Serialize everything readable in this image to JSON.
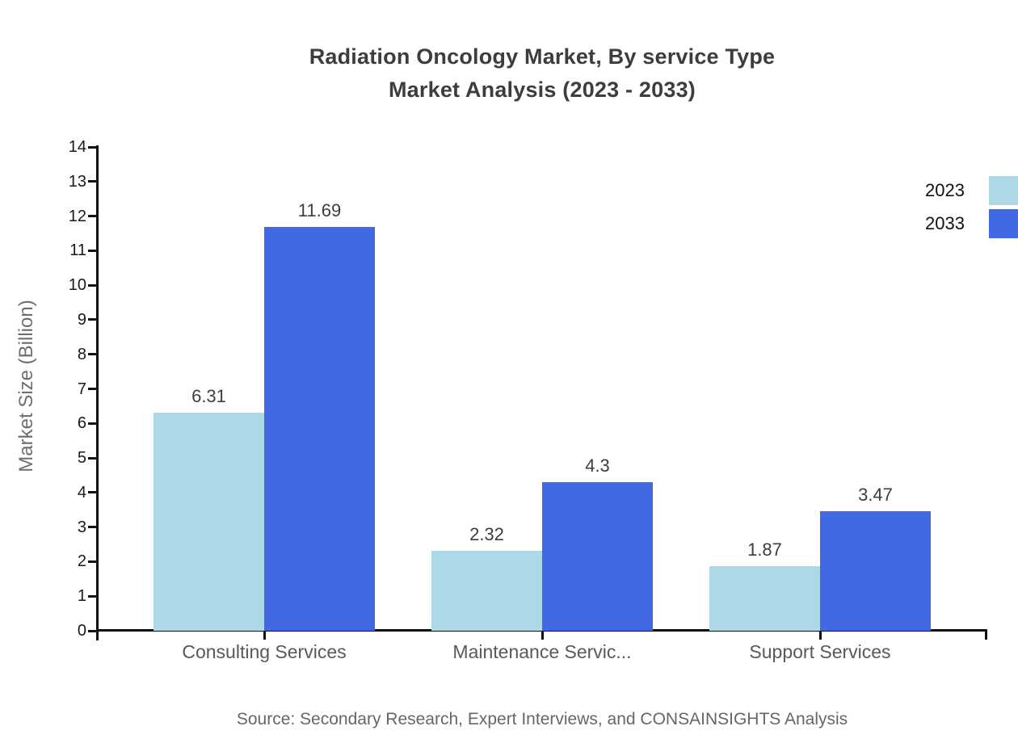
{
  "chart_data": {
    "type": "bar",
    "title": "Radiation Oncology Market, By service Type Market Analysis (2023 - 2033)",
    "title_lines": [
      "Radiation Oncology Market, By service Type",
      "Market Analysis (2023 - 2033)"
    ],
    "ylabel": "Market Size (Billion)",
    "xlabel": "",
    "categories": [
      "Consulting Services",
      "Maintenance Servic...",
      "Support Services"
    ],
    "series": [
      {
        "name": "2023",
        "color": "#ADD8E6",
        "values": [
          6.31,
          2.32,
          1.87
        ]
      },
      {
        "name": "2033",
        "color": "#4169E1",
        "values": [
          11.69,
          4.3,
          3.47
        ]
      }
    ],
    "value_labels": [
      [
        "6.31",
        "2.32",
        "1.87"
      ],
      [
        "11.69",
        "4.3",
        "3.47"
      ]
    ],
    "ylim": [
      0,
      14
    ],
    "ytick_step": 1,
    "grid": false,
    "legend_position": "top-right",
    "source": "Source: Secondary Research, Expert Interviews, and CONSAINSIGHTS Analysis",
    "colors": {
      "axis": "#111111",
      "title_text": "#3d3d3d",
      "tick_text": "#1a1a1a",
      "category_text": "#58595b",
      "value_text": "#3d3d3d",
      "y_axis_title_text": "#6e6e6e",
      "source_text": "#666666",
      "background": "#ffffff"
    }
  }
}
